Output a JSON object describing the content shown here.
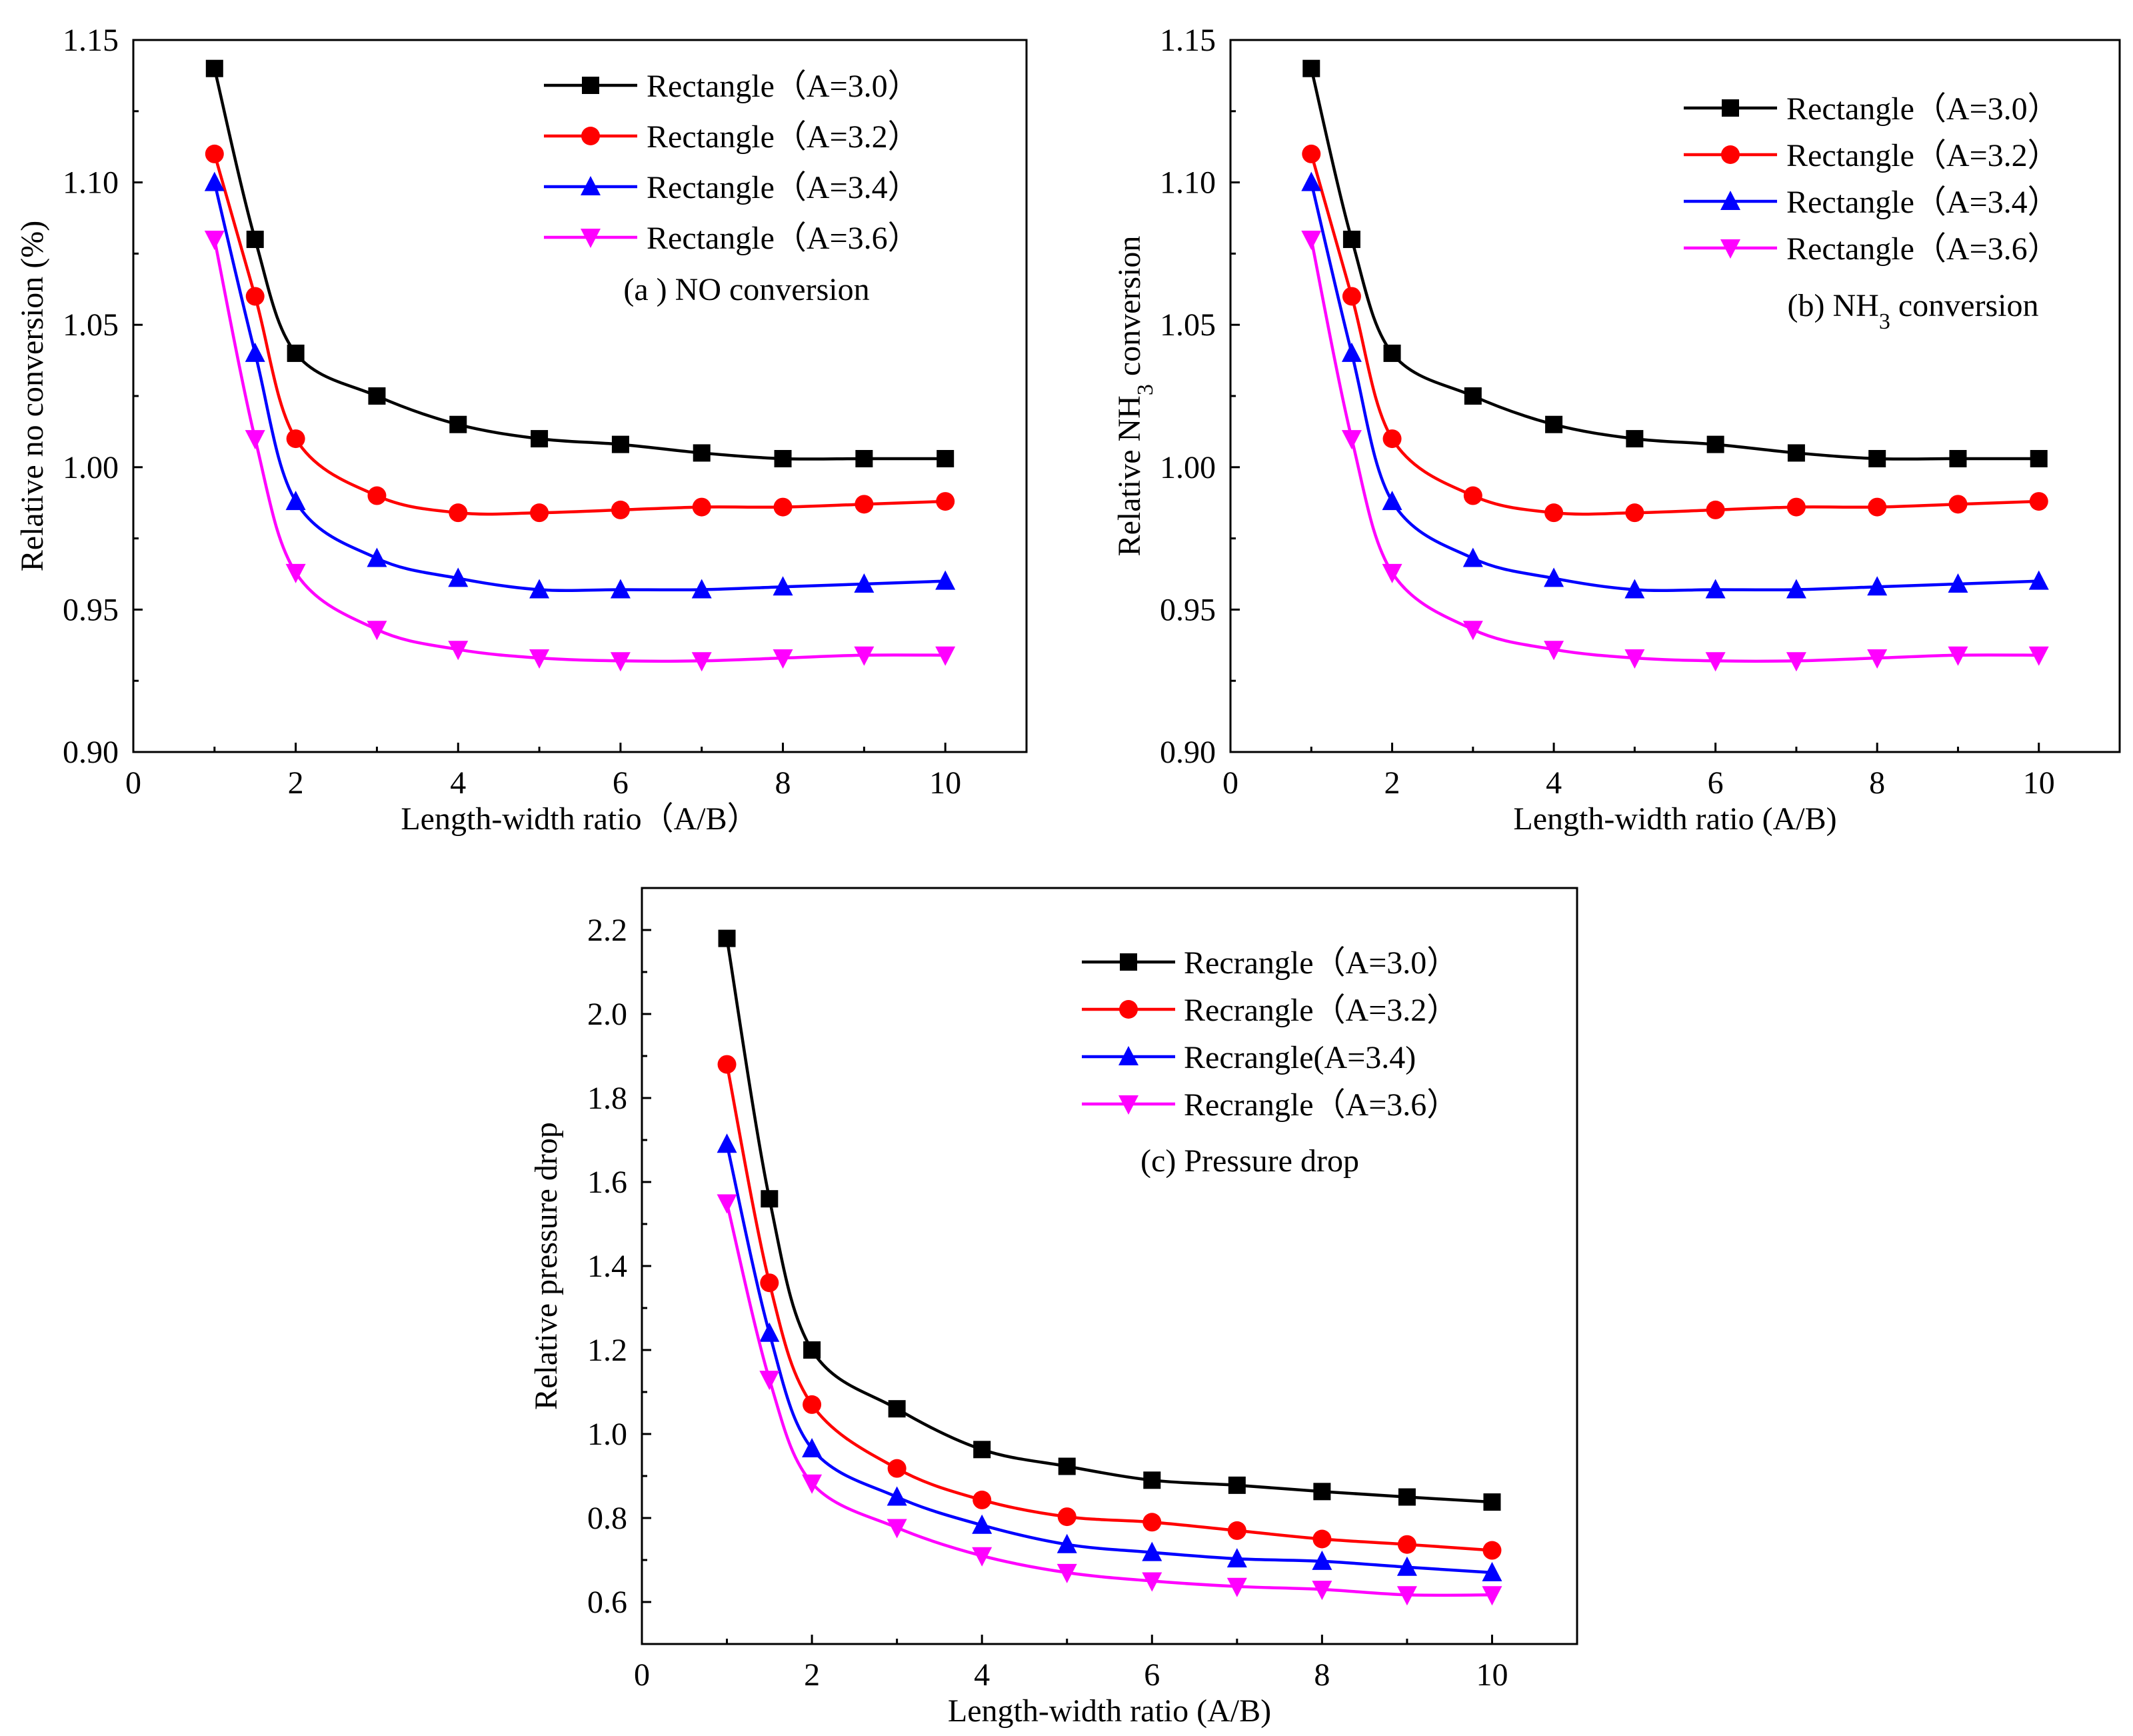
{
  "chart_data": [
    {
      "type": "line",
      "id": "a",
      "title": "(a ) NO conversion",
      "xlabel": "Length-width ratio（A/B）",
      "ylabel": "Relative no conversion (%)",
      "xlim": [
        0,
        11
      ],
      "ylim": [
        0.9,
        1.15
      ],
      "xticks": [
        "0",
        "2",
        "4",
        "6",
        "8",
        "10"
      ],
      "yticks": [
        "0.90",
        "0.95",
        "1.00",
        "1.05",
        "1.10",
        "1.15"
      ],
      "legend_position": "top-right",
      "x": [
        1,
        1.5,
        2,
        3,
        4,
        5,
        6,
        7,
        8,
        9,
        10
      ],
      "series": [
        {
          "name": "Rectangle（A=3.0）",
          "color": "#000000",
          "marker": "square",
          "values": [
            1.14,
            1.08,
            1.04,
            1.025,
            1.015,
            1.01,
            1.008,
            1.005,
            1.003,
            1.003,
            1.003
          ]
        },
        {
          "name": "Rectangle（A=3.2）",
          "color": "#ff0000",
          "marker": "circle",
          "values": [
            1.11,
            1.06,
            1.01,
            0.99,
            0.984,
            0.984,
            0.985,
            0.986,
            0.986,
            0.987,
            0.988
          ]
        },
        {
          "name": "Rectangle（A=3.4）",
          "color": "#0000ff",
          "marker": "triangle-up",
          "values": [
            1.1,
            1.04,
            0.988,
            0.968,
            0.961,
            0.957,
            0.957,
            0.957,
            0.958,
            0.959,
            0.96
          ]
        },
        {
          "name": "Rectangle（A=3.6）",
          "color": "#ff00ff",
          "marker": "triangle-down",
          "values": [
            1.08,
            1.01,
            0.963,
            0.943,
            0.936,
            0.933,
            0.932,
            0.932,
            0.933,
            0.934,
            0.934
          ]
        }
      ]
    },
    {
      "type": "line",
      "id": "b",
      "title": "(b) NH3 conversion",
      "title_parts": {
        "pre": "(b) NH",
        "sub": "3",
        "post": " conversion"
      },
      "xlabel": "Length-width ratio (A/B)",
      "ylabel": "Relative NH3 conversion",
      "ylabel_parts": {
        "pre": "Relative NH",
        "sub": "3",
        "post": " conversion"
      },
      "xlim": [
        0,
        11
      ],
      "ylim": [
        0.9,
        1.15
      ],
      "xticks": [
        "0",
        "2",
        "4",
        "6",
        "8",
        "10"
      ],
      "yticks": [
        "0.90",
        "0.95",
        "1.00",
        "1.05",
        "1.10",
        "1.15"
      ],
      "legend_position": "top-right",
      "x": [
        1,
        1.5,
        2,
        3,
        4,
        5,
        6,
        7,
        8,
        9,
        10
      ],
      "series": [
        {
          "name": "Rectangle（A=3.0）",
          "color": "#000000",
          "marker": "square",
          "values": [
            1.14,
            1.08,
            1.04,
            1.025,
            1.015,
            1.01,
            1.008,
            1.005,
            1.003,
            1.003,
            1.003
          ]
        },
        {
          "name": "Rectangle（A=3.2）",
          "color": "#ff0000",
          "marker": "circle",
          "values": [
            1.11,
            1.06,
            1.01,
            0.99,
            0.984,
            0.984,
            0.985,
            0.986,
            0.986,
            0.987,
            0.988
          ]
        },
        {
          "name": "Rectangle（A=3.4）",
          "color": "#0000ff",
          "marker": "triangle-up",
          "values": [
            1.1,
            1.04,
            0.988,
            0.968,
            0.961,
            0.957,
            0.957,
            0.957,
            0.958,
            0.959,
            0.96
          ]
        },
        {
          "name": "Rectangle（A=3.6）",
          "color": "#ff00ff",
          "marker": "triangle-down",
          "values": [
            1.08,
            1.01,
            0.963,
            0.943,
            0.936,
            0.933,
            0.932,
            0.932,
            0.933,
            0.934,
            0.934
          ]
        }
      ]
    },
    {
      "type": "line",
      "id": "c",
      "title": "(c)  Pressure drop",
      "xlabel": "Length-width ratio (A/B)",
      "ylabel": "Relative pressure drop",
      "xlim": [
        0,
        11
      ],
      "ylim": [
        0.5,
        2.3
      ],
      "xticks": [
        "0",
        "2",
        "4",
        "6",
        "8",
        "10"
      ],
      "yticks": [
        "0.6",
        "0.8",
        "1.0",
        "1.2",
        "1.4",
        "1.6",
        "1.8",
        "2.0",
        "2.2"
      ],
      "legend_position": "top-right",
      "x": [
        1,
        1.5,
        2,
        3,
        4,
        5,
        6,
        7,
        8,
        9,
        10
      ],
      "series": [
        {
          "name": "Recrangle（A=3.0）",
          "color": "#000000",
          "marker": "square",
          "values": [
            2.18,
            1.56,
            1.2,
            1.06,
            0.963,
            0.923,
            0.89,
            0.878,
            0.863,
            0.85,
            0.838
          ]
        },
        {
          "name": "Recrangle（A=3.2）",
          "color": "#ff0000",
          "marker": "circle",
          "values": [
            1.88,
            1.36,
            1.07,
            0.918,
            0.843,
            0.803,
            0.79,
            0.77,
            0.75,
            0.737,
            0.723
          ]
        },
        {
          "name": "Recrangle(A=3.4)",
          "color": "#0000ff",
          "marker": "triangle-up",
          "values": [
            1.69,
            1.24,
            0.965,
            0.85,
            0.783,
            0.737,
            0.718,
            0.703,
            0.697,
            0.683,
            0.67
          ]
        },
        {
          "name": "Recrangle（A=3.6）",
          "color": "#ff00ff",
          "marker": "triangle-down",
          "values": [
            1.55,
            1.13,
            0.883,
            0.777,
            0.71,
            0.67,
            0.65,
            0.637,
            0.63,
            0.617,
            0.617
          ]
        }
      ]
    }
  ]
}
